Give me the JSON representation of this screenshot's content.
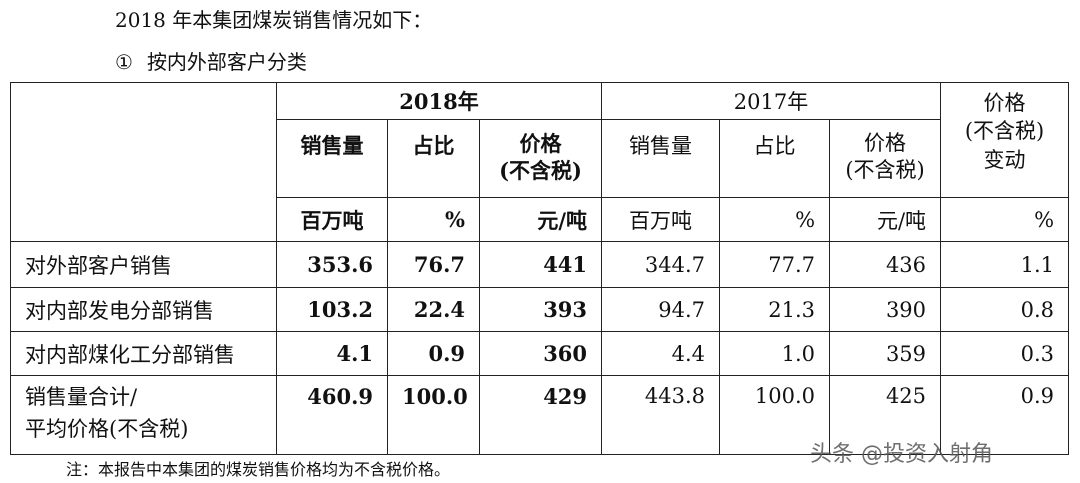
{
  "intro": "2018 年本集团煤炭销售情况如下：",
  "subtitle": {
    "marker": "①",
    "text": "按内外部客户分类"
  },
  "table": {
    "year_2018": "2018年",
    "year_2017": "2017年",
    "price_change_header": [
      "价格",
      "(不含税)",
      "变动"
    ],
    "col_labels_2018": {
      "volume": "销售量",
      "share": "占比",
      "price": [
        "价格",
        "(不含税)"
      ]
    },
    "col_labels_2017": {
      "volume": "销售量",
      "share": "占比",
      "price": [
        "价格",
        "(不含税)"
      ]
    },
    "units_2018": [
      "百万吨",
      "%",
      "元/吨"
    ],
    "units_2017": [
      "百万吨",
      "%",
      "元/吨"
    ],
    "unit_change": "%",
    "rows": [
      {
        "label": [
          "对外部客户销售"
        ],
        "v2018": [
          "353.6",
          "76.7",
          "441"
        ],
        "v2017": [
          "344.7",
          "77.7",
          "436"
        ],
        "change": "1.1"
      },
      {
        "label": [
          "对内部发电分部销售"
        ],
        "v2018": [
          "103.2",
          "22.4",
          "393"
        ],
        "v2017": [
          "94.7",
          "21.3",
          "390"
        ],
        "change": "0.8"
      },
      {
        "label": [
          "对内部煤化工分部销售"
        ],
        "v2018": [
          "4.1",
          "0.9",
          "360"
        ],
        "v2017": [
          "4.4",
          "1.0",
          "359"
        ],
        "change": "0.3"
      },
      {
        "label": [
          "销售量合计/",
          "平均价格(不含税)"
        ],
        "v2018": [
          "460.9",
          "100.0",
          "429"
        ],
        "v2017": [
          "443.8",
          "100.0",
          "425"
        ],
        "change": "0.9"
      }
    ]
  },
  "note": "注：本报告中本集团的煤炭销售价格均为不含税价格。",
  "watermark": "头条 @投资入射角"
}
